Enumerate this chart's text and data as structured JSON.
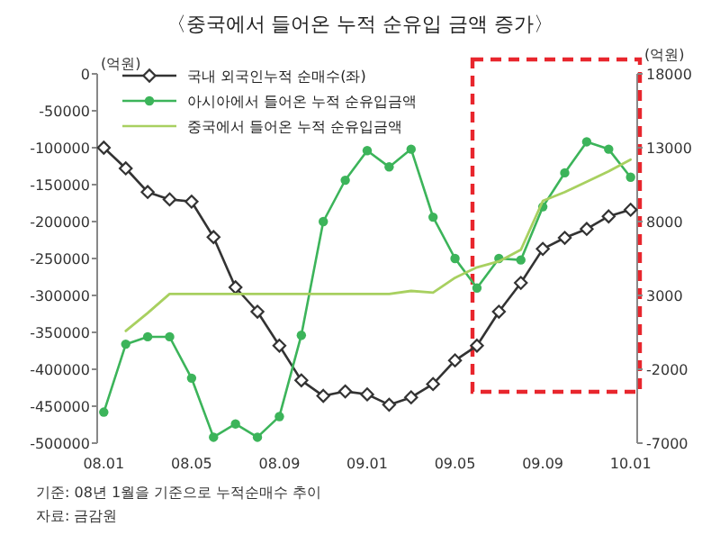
{
  "chart_data": {
    "type": "line",
    "title": "〈중국에서 들어온 누적 순유입 금액 증가〉",
    "ylabel": "(억원)",
    "y2label": "(억원)",
    "categories": [
      "08.01",
      null,
      null,
      null,
      "08.05",
      null,
      null,
      null,
      "08.09",
      null,
      null,
      null,
      "09.01",
      null,
      null,
      null,
      "09.05",
      null,
      null,
      null,
      "09.09",
      null,
      null,
      null,
      "10.01"
    ],
    "series": [
      {
        "name": "국내 외국인누적 순매수(좌)",
        "color": "#333333",
        "marker": "diamond",
        "values": [
          -100000,
          -128000,
          -160000,
          -170000,
          -173000,
          -221000,
          -289000,
          -322000,
          -368000,
          -415000,
          -436000,
          -430000,
          -434000,
          -448000,
          -438000,
          -420000,
          -388000,
          -368000,
          -322000,
          -283000,
          -237000,
          -222000,
          -210000,
          -193000,
          -184000
        ]
      },
      {
        "name": "아시아에서 들어온 누적 순유입금액",
        "color": "#3cb45a",
        "marker": "circle",
        "axis": "y2",
        "values": [
          -4900,
          -300,
          200,
          200,
          -2600,
          -6600,
          -5700,
          -6600,
          -5200,
          300,
          8000,
          10800,
          12800,
          11700,
          12900,
          8300,
          5500,
          3500,
          5500,
          5400,
          9000,
          11300,
          13400,
          12900,
          11000
        ]
      },
      {
        "name": "중국에서 들어온 누적 순유입금액",
        "color": "#a8d060",
        "marker": "none",
        "axis": "y2",
        "values": [
          null,
          600,
          1800,
          3100,
          3100,
          3100,
          3100,
          3100,
          3100,
          3100,
          3100,
          3100,
          3100,
          3100,
          3300,
          3200,
          4200,
          4900,
          5300,
          6100,
          9400,
          10000,
          10700,
          11400,
          12200
        ]
      }
    ],
    "ylim": [
      -500000,
      0
    ],
    "yticks": [
      -500000,
      -450000,
      -400000,
      -350000,
      -300000,
      -250000,
      -200000,
      -150000,
      -100000,
      -50000,
      0
    ],
    "y2lim": [
      -7000,
      18000
    ],
    "y2ticks": [
      -7000,
      -2000,
      3000,
      8000,
      13000,
      18000
    ],
    "legend": "top left",
    "grid": false,
    "annotations": [
      "기준: 08년 1월을 기준으로 누적순매수 추이",
      "자료: 금감원"
    ]
  }
}
